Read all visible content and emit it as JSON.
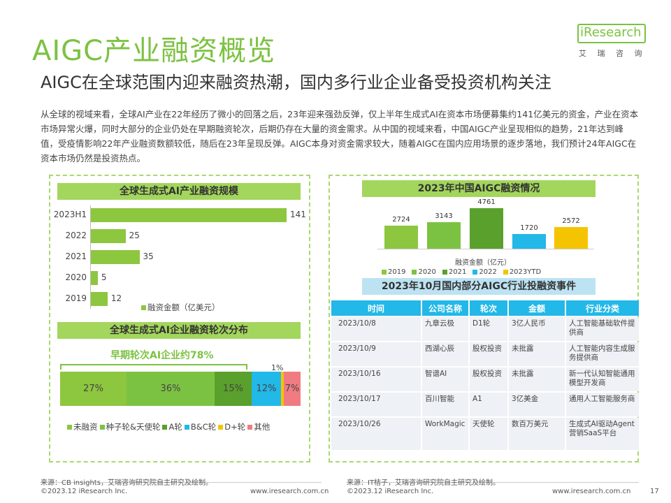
{
  "header": {
    "title": "AIGC产业融资概览",
    "subtitle": "AIGC在全球范围内迎来融资热潮，国内多行业企业备受投资机构关注",
    "logo": "iResearch",
    "logo_sub": "艾 瑞 咨 询"
  },
  "intro": "从全球的视域来看，全球AI产业在22年经历了微小的回落之后，23年迎来强劲反弹，仅上半年生成式AI在资本市场便募集约141亿美元的资金，产业在资本市场异常火爆，同时大部分的企业仍处在早期融资轮次，后期仍存在大量的资金需求。从中国的视域来看，中国AIGC产业呈现相似的趋势，21年达到峰值，受疫情影响22年产业融资数额较低，随后在23年呈现反弹。AIGC本身对资金需求较大，随着AIGC在国内应用场景的逐步落地，我们预计24年AIGC在资本市场仍然是投资热点。",
  "left": {
    "chart1_title": "全球生成式AI产业融资规模",
    "chart2_title": "全球生成式AI企业融资轮次分布",
    "chart2_callout": "早期轮次AI企业约78%",
    "chart2_small_label": "1%"
  },
  "right": {
    "chart3_title": "2023年中国AIGC融资情况",
    "table_title": "2023年10月国内部分AIGC行业投融资事件",
    "table_headers": [
      "时间",
      "公司名称",
      "轮次",
      "金额",
      "行业分类"
    ],
    "table_rows": [
      [
        "2023/10/8",
        "九章云极",
        "D1轮",
        "3亿人民币",
        "人工智能基础软件提供商"
      ],
      [
        "2023/10/9",
        "西湖心辰",
        "股权投资",
        "未批露",
        "人工智能内容生成服务提供商"
      ],
      [
        "2023/10/16",
        "智谱AI",
        "股权投资",
        "未批露",
        "新一代认知智能通用模型开发商"
      ],
      [
        "2023/10/17",
        "百川智能",
        "A1",
        "3亿美金",
        "通用人工智能服务商"
      ],
      [
        "2023/10/26",
        "WorkMagic",
        "天使轮",
        "数百万美元",
        "生成式AI驱动Agent营销SaaS平台"
      ]
    ]
  },
  "footer": {
    "left_source": "来源：CB insights，艾瑞咨询研究院自主研究及绘制。",
    "left_copy": "©2023.12 iResearch Inc.",
    "left_url": "www.iresearch.com.cn",
    "right_source": "来源：IT桔子，艾瑞咨询研究院自主研究及绘制。",
    "right_copy": "©2023.12 iResearch Inc.",
    "right_url": "www.iresearch.com.cn",
    "page": "17"
  },
  "colors": {
    "green": "#8dc63f",
    "dark_green": "#5aa02c",
    "mid_green": "#7cc242",
    "light_green": "#a3d65c",
    "blue": "#22b8e8",
    "yellow": "#f5c400",
    "pink": "#f07c82"
  },
  "chart_data": [
    {
      "type": "bar",
      "orientation": "horizontal",
      "title": "全球生成式AI产业融资规模",
      "categories": [
        "2023H1",
        "2022",
        "2021",
        "2020",
        "2019"
      ],
      "values": [
        141,
        25,
        35,
        5,
        12
      ],
      "legend": "融资金额（亿美元）"
    },
    {
      "type": "bar",
      "orientation": "stacked-horizontal",
      "title": "全球生成式AI企业融资轮次分布",
      "series": [
        {
          "name": "未融资",
          "value": 27,
          "label": "27%",
          "color": "#8dc63f"
        },
        {
          "name": "种子轮&天使轮",
          "value": 36,
          "label": "36%",
          "color": "#7cc242"
        },
        {
          "name": "A轮",
          "value": 15,
          "label": "15%",
          "color": "#5aa02c"
        },
        {
          "name": "B&C轮",
          "value": 12,
          "label": "12%",
          "color": "#22b8e8"
        },
        {
          "name": "D+轮",
          "value": 1,
          "label": "",
          "color": "#f5c400"
        },
        {
          "name": "其他",
          "value": 7,
          "label": "7%",
          "color": "#f07c82"
        }
      ]
    },
    {
      "type": "bar",
      "title": "2023年中国AIGC融资情况",
      "categories": [
        "2019",
        "2020",
        "2021",
        "2022",
        "2023YTD"
      ],
      "values": [
        2724,
        3143,
        4761,
        1720,
        2572
      ],
      "colors": [
        "#8dc63f",
        "#7cc242",
        "#5aa02c",
        "#22b8e8",
        "#f5c400"
      ],
      "xlabel": "融资金额（亿元）"
    }
  ]
}
